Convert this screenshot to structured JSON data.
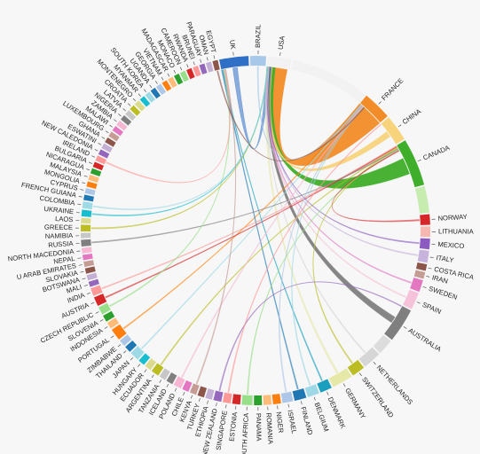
{
  "diagram": {
    "type": "chord",
    "hub": "USA",
    "nodes": [
      {
        "name": "UK",
        "color": "#2f6fc6",
        "weight": 2.2
      },
      {
        "name": "BRAZIL",
        "color": "#a8c8ea",
        "weight": 1.2
      },
      {
        "name": "USA",
        "color": "#f2f2f2",
        "weight": 1.8
      },
      {
        "name": "",
        "color": "#f2f2f2",
        "weight": 6.0
      },
      {
        "name": "FRANCE",
        "color": "#f28c28",
        "weight": 2.2
      },
      {
        "name": "CHINA",
        "color": "#f7d37c",
        "weight": 2.0
      },
      {
        "name": "CANADA",
        "color": "#3fae2a",
        "weight": 3.6
      },
      {
        "name": "",
        "color": "#c7ecb0",
        "weight": 2.0
      },
      {
        "name": "NORWAY",
        "color": "#d62728",
        "weight": 0.8
      },
      {
        "name": "LITHUANIA",
        "color": "#f6b8b0",
        "weight": 0.8
      },
      {
        "name": "MEXICO",
        "color": "#8c5bc2",
        "weight": 0.8
      },
      {
        "name": "ITALY",
        "color": "#c7b4dc",
        "weight": 0.9
      },
      {
        "name": "COSTA RICA",
        "color": "#8c564b",
        "weight": 0.5
      },
      {
        "name": "IRAN",
        "color": "#c49c94",
        "weight": 0.5
      },
      {
        "name": "SWEDEN",
        "color": "#e377c2",
        "weight": 0.9
      },
      {
        "name": "SPAIN",
        "color": "#f6c2d9",
        "weight": 1.3
      },
      {
        "name": "AUSTRALIA",
        "color": "#7f7f7f",
        "weight": 2.6
      },
      {
        "name": "",
        "color": "#dcdcdc",
        "weight": 1.2
      },
      {
        "name": "NETHERLANDS",
        "color": "#d6d6d6",
        "weight": 1.4
      },
      {
        "name": "SWITZERLAND",
        "color": "#bcbd22",
        "weight": 1.0
      },
      {
        "name": "GERMANY",
        "color": "#e6e8a8",
        "weight": 1.6
      },
      {
        "name": "DENMARK",
        "color": "#1a9fbf",
        "weight": 0.9
      },
      {
        "name": "BELGIUM",
        "color": "#9ed8e6",
        "weight": 0.9
      },
      {
        "name": "FINLAND",
        "color": "#1f77b4",
        "weight": 0.9
      },
      {
        "name": "ISRAEL",
        "color": "#aec7e8",
        "weight": 0.8
      },
      {
        "name": "NIGER",
        "color": "#ff7f0e",
        "weight": 0.6
      },
      {
        "name": "ROMANIA",
        "color": "#ffbb78",
        "weight": 0.6
      },
      {
        "name": "PANAMA",
        "color": "#2ca02c",
        "weight": 0.6
      },
      {
        "name": "SOUTH AFRICA",
        "color": "#98df8a",
        "weight": 0.8
      },
      {
        "name": "ESTONIA",
        "color": "#d62728",
        "weight": 0.6
      },
      {
        "name": "SINGAPORE",
        "color": "#ff9896",
        "weight": 0.6
      },
      {
        "name": "NEW ZEALAND",
        "color": "#9467bd",
        "weight": 0.6
      },
      {
        "name": "ETHIOPIA",
        "color": "#c5b0d5",
        "weight": 0.5
      },
      {
        "name": "TURKEY",
        "color": "#8c564b",
        "weight": 0.5
      },
      {
        "name": "KENYA",
        "color": "#c49c94",
        "weight": 0.5
      },
      {
        "name": "CHILE",
        "color": "#e377c2",
        "weight": 0.5
      },
      {
        "name": "POLAND",
        "color": "#f7b6d2",
        "weight": 0.6
      },
      {
        "name": "ICELAND",
        "color": "#7f7f7f",
        "weight": 0.5
      },
      {
        "name": "TANZANIA",
        "color": "#c7c7c7",
        "weight": 0.5
      },
      {
        "name": "ARGENTINA",
        "color": "#bcbd22",
        "weight": 0.6
      },
      {
        "name": "ECUADOR",
        "color": "#dbdb8d",
        "weight": 0.5
      },
      {
        "name": "HUNGARY",
        "color": "#17becf",
        "weight": 0.5
      },
      {
        "name": "JAPAN",
        "color": "#9edae5",
        "weight": 0.7
      },
      {
        "name": "THAILAND",
        "color": "#1f77b4",
        "weight": 0.5
      },
      {
        "name": "ZIMBABWE",
        "color": "#aec7e8",
        "weight": 0.5
      },
      {
        "name": "PORTUGAL",
        "color": "#ff7f0e",
        "weight": 0.9
      },
      {
        "name": "INDONESIA",
        "color": "#ffbb78",
        "weight": 0.5
      },
      {
        "name": "SLOVENIA",
        "color": "#2ca02c",
        "weight": 0.5
      },
      {
        "name": "CZECH REPUBLIC",
        "color": "#98df8a",
        "weight": 0.6
      },
      {
        "name": "AUSTRIA",
        "color": "#d62728",
        "weight": 0.7
      },
      {
        "name": "INDIA",
        "color": "#ff9896",
        "weight": 0.6
      },
      {
        "name": "MALI",
        "color": "#9467bd",
        "weight": 0.4
      },
      {
        "name": "BOTSWANA",
        "color": "#c5b0d5",
        "weight": 0.4
      },
      {
        "name": "SLOVAKIA",
        "color": "#8c564b",
        "weight": 0.4
      },
      {
        "name": "U ARAB EMIRATES",
        "color": "#c49c94",
        "weight": 0.4
      },
      {
        "name": "NEPAL",
        "color": "#e377c2",
        "weight": 0.4
      },
      {
        "name": "NORTH MACEDONIA",
        "color": "#f7b6d2",
        "weight": 0.4
      },
      {
        "name": "RUSSIA",
        "color": "#7f7f7f",
        "weight": 0.5
      },
      {
        "name": "NAMIBIA",
        "color": "#c7c7c7",
        "weight": 0.4
      },
      {
        "name": "GREECE",
        "color": "#bcbd22",
        "weight": 0.5
      },
      {
        "name": "LAOS",
        "color": "#dbdb8d",
        "weight": 0.4
      },
      {
        "name": "UKRAINE",
        "color": "#17becf",
        "weight": 0.5
      },
      {
        "name": "COLOMBIA",
        "color": "#9edae5",
        "weight": 0.5
      },
      {
        "name": "FRENCH GUIANA",
        "color": "#1f77b4",
        "weight": 0.4
      },
      {
        "name": "CYPRUS",
        "color": "#aec7e8",
        "weight": 0.4
      },
      {
        "name": "MONGOLIA",
        "color": "#ff7f0e",
        "weight": 0.4
      },
      {
        "name": "MALAYSIA",
        "color": "#ffbb78",
        "weight": 0.4
      },
      {
        "name": "NICARAGUA",
        "color": "#2ca02c",
        "weight": 0.4
      },
      {
        "name": "BULGARIA",
        "color": "#d62728",
        "weight": 0.4
      },
      {
        "name": "IRELAND",
        "color": "#ff9896",
        "weight": 0.4
      },
      {
        "name": "NEW CALEDONIA",
        "color": "#9467bd",
        "weight": 0.4
      },
      {
        "name": "ESWATINI",
        "color": "#c5b0d5",
        "weight": 0.4
      },
      {
        "name": "GHANA",
        "color": "#8c564b",
        "weight": 0.4
      },
      {
        "name": "LUXEMBOURG",
        "color": "#c49c94",
        "weight": 0.4
      },
      {
        "name": "MALAWI",
        "color": "#e377c2",
        "weight": 0.4
      },
      {
        "name": "ZAMBIA",
        "color": "#f7b6d2",
        "weight": 0.4
      },
      {
        "name": "NIGERIA",
        "color": "#7f7f7f",
        "weight": 0.4
      },
      {
        "name": "LATVIA",
        "color": "#c7c7c7",
        "weight": 0.4
      },
      {
        "name": "CROATIA",
        "color": "#bcbd22",
        "weight": 0.4
      },
      {
        "name": "MONTENEGRO",
        "color": "#dbdb8d",
        "weight": 0.4
      },
      {
        "name": "MYANMAR",
        "color": "#17becf",
        "weight": 0.4
      },
      {
        "name": "SOUTH KOREA",
        "color": "#9edae5",
        "weight": 0.4
      },
      {
        "name": "UGANDA",
        "color": "#1f77b4",
        "weight": 0.4
      },
      {
        "name": "GEORGIA",
        "color": "#aec7e8",
        "weight": 0.4
      },
      {
        "name": "VIETNAM",
        "color": "#ff7f0e",
        "weight": 0.4
      },
      {
        "name": "MADAGASCAR",
        "color": "#ffbb78",
        "weight": 0.4
      },
      {
        "name": "MONACO",
        "color": "#2ca02c",
        "weight": 0.4
      },
      {
        "name": "CAMEROON",
        "color": "#98df8a",
        "weight": 0.4
      },
      {
        "name": "RWANDA",
        "color": "#d62728",
        "weight": 0.4
      },
      {
        "name": "BRUNEI",
        "color": "#ff9896",
        "weight": 0.4
      },
      {
        "name": "PARAGUAY",
        "color": "#9467bd",
        "weight": 0.4
      },
      {
        "name": "OMAN",
        "color": "#c5b0d5",
        "weight": 0.4
      },
      {
        "name": "EGYPT",
        "color": "#8c564b",
        "weight": 0.4
      }
    ],
    "links": [
      {
        "source": "FRANCE",
        "target": "USA",
        "value": 6.0
      },
      {
        "source": "CANADA",
        "target": "USA",
        "value": 2.2
      },
      {
        "source": "CHINA",
        "target": "USA",
        "value": 1.4
      },
      {
        "source": "AUSTRALIA",
        "target": "USA",
        "value": 1.2
      },
      {
        "source": "UK",
        "target": "USA",
        "value": 1.0
      },
      {
        "source": "GERMANY",
        "target": "USA",
        "value": 0.6
      },
      {
        "source": "SPAIN",
        "target": "USA",
        "value": 0.5
      },
      {
        "source": "PORTUGAL",
        "target": "FRANCE",
        "value": 0.3
      },
      {
        "source": "FINLAND",
        "target": "UK",
        "value": 0.3
      },
      {
        "source": "INDIA",
        "target": "CANADA",
        "value": 0.2
      },
      {
        "source": "JAPAN",
        "target": "FRANCE",
        "value": 0.2
      },
      {
        "source": "BRAZIL",
        "target": "FRANCE",
        "value": 0.2
      },
      {
        "source": "AUSTRIA",
        "target": "CANADA",
        "value": 0.2
      },
      {
        "source": "ARGENTINA",
        "target": "CANADA",
        "value": 0.15
      },
      {
        "source": "DENMARK",
        "target": "UK",
        "value": 0.15
      },
      {
        "source": "SWEDEN",
        "target": "USA",
        "value": 0.3
      },
      {
        "source": "ITALY",
        "target": "USA",
        "value": 0.3
      },
      {
        "source": "MEXICO",
        "target": "USA",
        "value": 0.3
      },
      {
        "source": "NETHERLANDS",
        "target": "USA",
        "value": 0.3
      },
      {
        "source": "SWITZERLAND",
        "target": "CANADA",
        "value": 0.2
      },
      {
        "source": "RUSSIA",
        "target": "CANADA",
        "value": 0.15
      },
      {
        "source": "ISRAEL",
        "target": "FRANCE",
        "value": 0.12
      },
      {
        "source": "SOUTH AFRICA",
        "target": "CANADA",
        "value": 0.12
      },
      {
        "source": "POLAND",
        "target": "FRANCE",
        "value": 0.12
      },
      {
        "source": "CZECH REPUBLIC",
        "target": "UK",
        "value": 0.12
      },
      {
        "source": "GREECE",
        "target": "USA",
        "value": 0.12
      },
      {
        "source": "IRELAND",
        "target": "UK",
        "value": 0.1
      },
      {
        "source": "NORWAY",
        "target": "CANADA",
        "value": 0.12
      },
      {
        "source": "BELGIUM",
        "target": "FRANCE",
        "value": 0.15
      },
      {
        "source": "NEW ZEALAND",
        "target": "AUSTRALIA",
        "value": 0.12
      },
      {
        "source": "UKRAINE",
        "target": "USA",
        "value": 0.1
      },
      {
        "source": "COLOMBIA",
        "target": "USA",
        "value": 0.1
      },
      {
        "source": "KENYA",
        "target": "UK",
        "value": 0.08
      },
      {
        "source": "SINGAPORE",
        "target": "CHINA",
        "value": 0.08
      },
      {
        "source": "EGYPT",
        "target": "FRANCE",
        "value": 0.08
      }
    ]
  }
}
